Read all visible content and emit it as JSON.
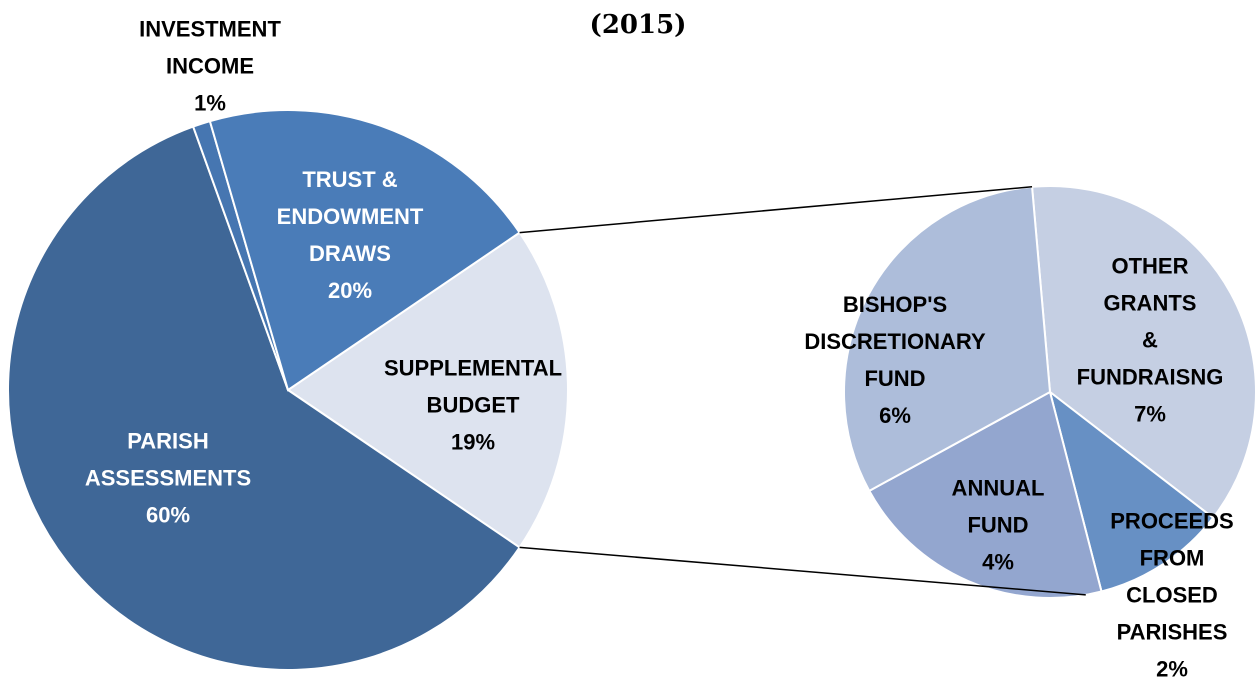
{
  "chart_data": {
    "type": "pie-of-pie",
    "title": "(2015)",
    "categories": [
      "SUPPLEMENTAL\nBUDGET",
      "PARISH\nASSESSMENTS",
      "INVESTMENT\nINCOME",
      "TRUST &\nENDOWMENT\nDRAWS"
    ],
    "values": [
      19,
      60,
      1,
      20
    ],
    "value_labels": [
      "19%",
      "60%",
      "1%",
      "20%"
    ],
    "colors": [
      "#dde3ef",
      "#3f6797",
      "#4676b1",
      "#4a7cb8"
    ],
    "secondary": {
      "categories": [
        "OTHER GRANTS\n& FUNDRAISNG",
        "PROCEEDS\nFROM\nCLOSED\nPARISHES",
        "ANNUAL\nFUND",
        "BISHOP'S\nDISCRETIONARY\nFUND"
      ],
      "values": [
        7,
        2,
        4,
        6
      ],
      "value_labels": [
        "7%",
        "2%",
        "4%",
        "6%"
      ],
      "colors": [
        "#c5cfe3",
        "#6790c4",
        "#93a6cf",
        "#adbdda"
      ]
    }
  }
}
